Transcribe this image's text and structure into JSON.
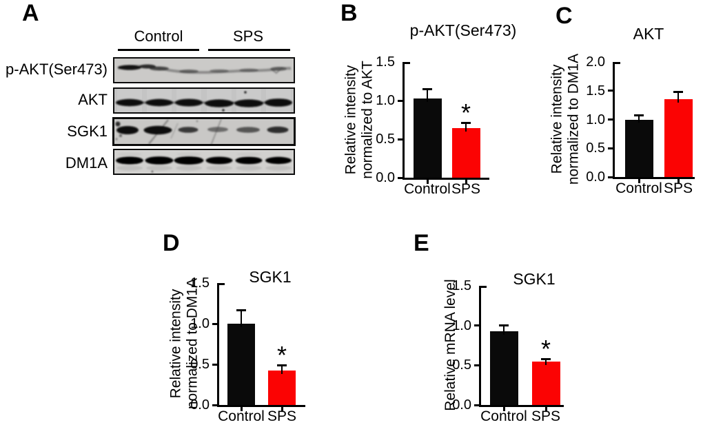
{
  "panels": {
    "a": "A",
    "b": "B",
    "c": "C",
    "d": "D",
    "e": "E"
  },
  "panel_a": {
    "group_labels": [
      "Control",
      "SPS"
    ],
    "row_labels": [
      "p-AKT(Ser473)",
      "AKT",
      "SGK1",
      "DM1A"
    ],
    "lane_count": 6,
    "lanes_per_group": 3
  },
  "colors": {
    "control_bar": "#0a0a0a",
    "sps_bar": "#fb0303",
    "axis": "#000000"
  },
  "chart_data": [
    {
      "id": "B",
      "type": "bar",
      "title": "p-AKT(Ser473)",
      "ylabel_lines": [
        "Relative intensity",
        "normalized to AKT"
      ],
      "categories": [
        "Control",
        "SPS"
      ],
      "values": [
        1.03,
        0.64
      ],
      "errors": [
        0.12,
        0.07
      ],
      "bar_colors": [
        "#0a0a0a",
        "#fb0303"
      ],
      "significance": [
        "",
        "*"
      ],
      "ylim": [
        0,
        1.5
      ],
      "yticks": [
        0,
        0.5,
        1,
        1.5
      ],
      "grid": false,
      "legend": false
    },
    {
      "id": "C",
      "type": "bar",
      "title": "AKT",
      "ylabel_lines": [
        "Relative intensity",
        "normalized to DM1A"
      ],
      "categories": [
        "Control",
        "SPS"
      ],
      "values": [
        1.0,
        1.35
      ],
      "errors": [
        0.08,
        0.13
      ],
      "bar_colors": [
        "#0a0a0a",
        "#fb0303"
      ],
      "significance": [
        "",
        ""
      ],
      "ylim": [
        0,
        2.0
      ],
      "yticks": [
        0,
        0.5,
        1,
        1.5,
        2
      ],
      "grid": false,
      "legend": false
    },
    {
      "id": "D",
      "type": "bar",
      "title": "SGK1",
      "ylabel_lines": [
        "Relative intensity",
        "normalized to DM1A"
      ],
      "categories": [
        "Control",
        "SPS"
      ],
      "values": [
        1.0,
        0.42
      ],
      "errors": [
        0.17,
        0.07
      ],
      "bar_colors": [
        "#0a0a0a",
        "#fb0303"
      ],
      "significance": [
        "",
        "*"
      ],
      "ylim": [
        0,
        1.5
      ],
      "yticks": [
        0,
        0.5,
        1,
        1.5
      ],
      "grid": false,
      "legend": false
    },
    {
      "id": "E",
      "type": "bar",
      "title": "SGK1",
      "ylabel_lines": [
        "Relative mRNA level"
      ],
      "categories": [
        "Control",
        "SPS"
      ],
      "values": [
        0.93,
        0.55
      ],
      "errors": [
        0.08,
        0.03
      ],
      "bar_colors": [
        "#0a0a0a",
        "#fb0303"
      ],
      "significance": [
        "",
        "*"
      ],
      "ylim": [
        0,
        1.5
      ],
      "yticks": [
        0,
        0.5,
        1,
        1.5
      ],
      "grid": false,
      "legend": false
    }
  ]
}
